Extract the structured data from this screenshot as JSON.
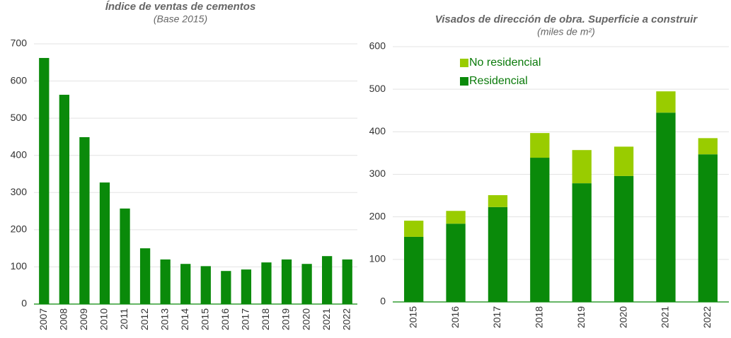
{
  "chart_data": [
    {
      "type": "bar",
      "title": "Índice de ventas de cementos",
      "subtitle": "(Base 2015)",
      "categories": [
        "2007",
        "2008",
        "2009",
        "2010",
        "2011",
        "2012",
        "2013",
        "2014",
        "2015",
        "2016",
        "2017",
        "2018",
        "2019",
        "2020",
        "2021",
        "2022"
      ],
      "values": [
        662,
        563,
        449,
        327,
        257,
        150,
        120,
        108,
        102,
        89,
        93,
        112,
        120,
        108,
        129,
        120
      ],
      "color": "#0a8a0a",
      "ylim": [
        0,
        700
      ],
      "yticks": [
        0,
        100,
        200,
        300,
        400,
        500,
        600,
        700
      ],
      "grid": true
    },
    {
      "type": "stacked_bar",
      "title": "Visados de dirección de obra. Superficie a construir",
      "subtitle": "(miles de m²)",
      "categories": [
        "2015",
        "2016",
        "2017",
        "2018",
        "2019",
        "2020",
        "2021",
        "2022"
      ],
      "series": [
        {
          "name": "Residencial",
          "color": "#0a8a0a",
          "values": [
            153,
            184,
            223,
            339,
            279,
            296,
            445,
            347
          ]
        },
        {
          "name": "No residencial",
          "color": "#99cc00",
          "values": [
            38,
            30,
            28,
            58,
            78,
            69,
            50,
            38
          ]
        }
      ],
      "ylim": [
        0,
        600
      ],
      "yticks": [
        0,
        100,
        200,
        300,
        400,
        500,
        600
      ],
      "grid": true,
      "legend": "top-left"
    }
  ]
}
